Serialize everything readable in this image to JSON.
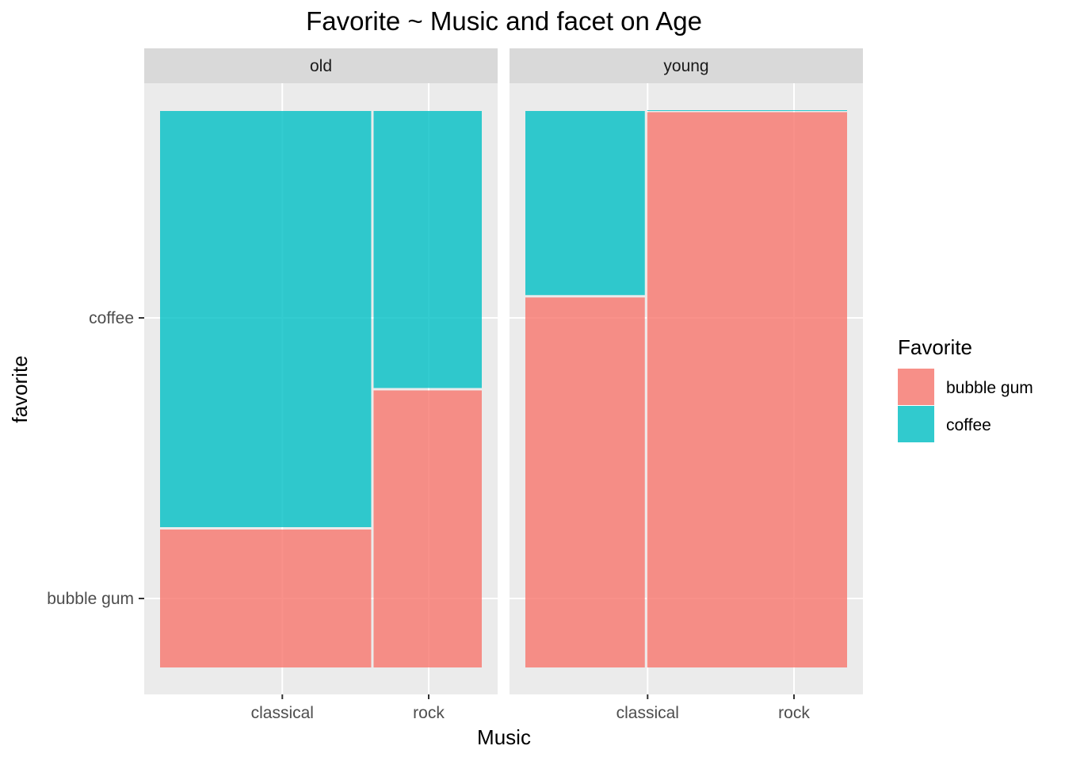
{
  "chart_data": {
    "type": "mosaic",
    "title": "Favorite ~ Music and facet on Age",
    "xlabel": "Music",
    "ylabel": "favorite",
    "y_ticks": [
      "coffee",
      "bubble gum"
    ],
    "legend": {
      "title": "Favorite",
      "position": "right",
      "items": [
        {
          "label": "bubble gum",
          "color": "#F8766D"
        },
        {
          "label": "coffee",
          "color": "#00BFC4"
        }
      ]
    },
    "fill_opacity": 0.8,
    "grid": true,
    "facets": [
      {
        "label": "old",
        "x_ticks": [
          {
            "label": "classical",
            "position": 0.38
          },
          {
            "label": "rock",
            "position": 0.835
          }
        ],
        "columns": [
          {
            "category": "classical",
            "width": 0.66,
            "segments": [
              {
                "label": "bubble gum",
                "share": 0.25
              },
              {
                "label": "coffee",
                "share": 0.75
              }
            ]
          },
          {
            "category": "rock",
            "width": 0.34,
            "segments": [
              {
                "label": "bubble gum",
                "share": 0.5
              },
              {
                "label": "coffee",
                "share": 0.5
              }
            ]
          }
        ]
      },
      {
        "label": "young",
        "x_ticks": [
          {
            "label": "classical",
            "position": 0.38
          },
          {
            "label": "rock",
            "position": 0.835
          }
        ],
        "columns": [
          {
            "category": "classical",
            "width": 0.375,
            "segments": [
              {
                "label": "bubble gum",
                "share": 0.667
              },
              {
                "label": "coffee",
                "share": 0.333
              }
            ]
          },
          {
            "category": "rock",
            "width": 0.625,
            "segments": [
              {
                "label": "bubble gum",
                "share": 1.0
              },
              {
                "label": "coffee",
                "share": 0.0
              }
            ]
          }
        ]
      }
    ]
  }
}
